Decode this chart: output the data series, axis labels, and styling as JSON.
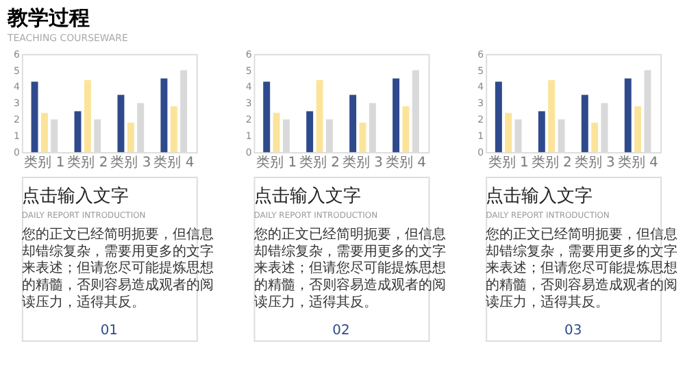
{
  "chart_data": [
    {
      "type": "bar",
      "title": "教学过程",
      "subtitle": "TEACHING COURSEWARE",
      "categories": [
        "类别 1",
        "类别 2",
        "类别 3",
        "类别 4"
      ],
      "series": [
        {
          "color": "#2e4a8c",
          "values": [
            4.3,
            2.5,
            3.5,
            4.5
          ]
        },
        {
          "color": "#fbe49a",
          "values": [
            2.4,
            4.4,
            1.8,
            2.8
          ]
        },
        {
          "color": "#d9d9d9",
          "values": [
            2,
            2,
            3,
            5
          ]
        }
      ],
      "ylim": [
        0,
        6
      ],
      "yticks": [
        0,
        1,
        2,
        3,
        4,
        5,
        6
      ],
      "grid": false,
      "legend": false,
      "annotations": [
        "点击输入文字",
        "DAILY REPORT INTRODUCTION",
        "您的正文已经简明扼要，但信息却错综复杂，需要用更多的文字来表述；但请您尽可能提炼思想的精髓，否则容易造成观者的阅读压力，适得其反。",
        "01"
      ]
    },
    {
      "type": "bar",
      "categories": [
        "类别 1",
        "类别 2",
        "类别 3",
        "类别 4"
      ],
      "series": [
        {
          "color": "#2e4a8c",
          "values": [
            4.3,
            2.5,
            3.5,
            4.5
          ]
        },
        {
          "color": "#fbe49a",
          "values": [
            2.4,
            4.4,
            1.8,
            2.8
          ]
        },
        {
          "color": "#d9d9d9",
          "values": [
            2,
            2,
            3,
            5
          ]
        }
      ],
      "ylim": [
        0,
        6
      ],
      "yticks": [
        0,
        1,
        2,
        3,
        4,
        5,
        6
      ],
      "grid": false,
      "legend": false,
      "annotations": [
        "点击输入文字",
        "DAILY REPORT INTRODUCTION",
        "您的正文已经简明扼要，但信息却错综复杂，需要用更多的文字来表述；但请您尽可能提炼思想的精髓，否则容易造成观者的阅读压力，适得其反。",
        "02"
      ]
    },
    {
      "type": "bar",
      "categories": [
        "类别 1",
        "类别 2",
        "类别 3",
        "类别 4"
      ],
      "series": [
        {
          "color": "#2e4a8c",
          "values": [
            4.3,
            2.5,
            3.5,
            4.5
          ]
        },
        {
          "color": "#fbe49a",
          "values": [
            2.4,
            4.4,
            1.8,
            2.8
          ]
        },
        {
          "color": "#d9d9d9",
          "values": [
            2,
            2,
            3,
            5
          ]
        }
      ],
      "ylim": [
        0,
        6
      ],
      "yticks": [
        0,
        1,
        2,
        3,
        4,
        5,
        6
      ],
      "grid": false,
      "legend": false,
      "annotations": [
        "点击输入文字",
        "DAILY REPORT INTRODUCTION",
        "您的正文已经简明扼要，但信息却错综复杂，需要用更多的文字来表述；但请您尽可能提炼思想的精髓，否则容易造成观者的阅读压力，适得其反。",
        "03"
      ]
    }
  ]
}
